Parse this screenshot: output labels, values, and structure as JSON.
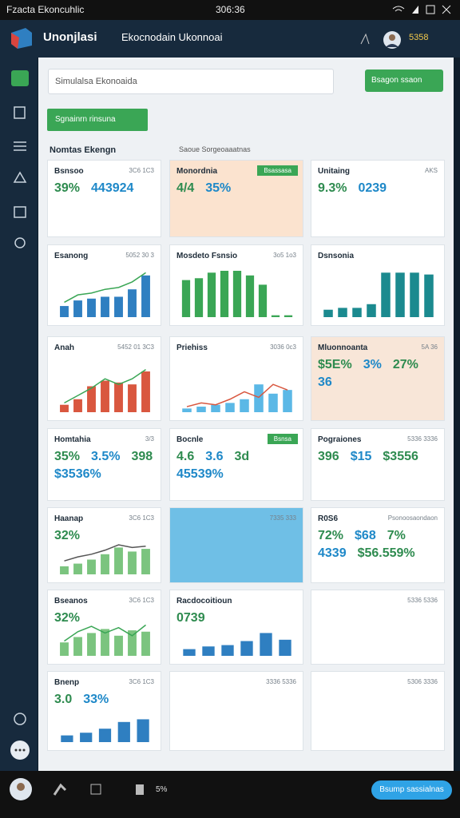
{
  "status_bar": {
    "title": "Fzacta Ekoncuhlic",
    "time": "306:36"
  },
  "header": {
    "app_name": "Unonjlasi",
    "page_title": "Ekocnodain Ukonnoai",
    "badge": "5358"
  },
  "search": {
    "placeholder": "Simulalsa Ekonoaida",
    "button": "Bsagon ssaon"
  },
  "action_button": "Sgnainrn rinsuna",
  "section": {
    "title": "Nomtas Ekengn",
    "filter": "Saoue Sorgeoaaatnas"
  },
  "cards": [
    {
      "title": "Bsnsoo",
      "meta": "3C6 1C3",
      "stats": [
        "39%",
        "443924"
      ]
    },
    {
      "title": "Monordnia",
      "badge": "Bsassasa",
      "background": "#fbe3cf",
      "stats": [
        "4/4",
        "35%"
      ]
    },
    {
      "title": "Unitaing",
      "meta": "AKS",
      "stats": [
        "9.3%",
        "0239"
      ]
    },
    {
      "title": "Esanong",
      "meta": "5052 30 3",
      "color": "#2f7fc1",
      "line_color": "#3aa655",
      "ylim": [
        0,
        50
      ],
      "bars": [
        12,
        18,
        20,
        22,
        22,
        30,
        45
      ],
      "line": [
        16,
        24,
        26,
        30,
        32,
        38,
        48
      ]
    },
    {
      "title": "Mosdeto Fsnsio",
      "meta": "3o5 1o3",
      "color": "#3aa655",
      "ylim": [
        0,
        50
      ],
      "bars": [
        40,
        42,
        48,
        50,
        52,
        45,
        35,
        2,
        2
      ]
    },
    {
      "title": "Dsnsonia",
      "color": "#1b8a8f",
      "ylim": [
        0,
        50
      ],
      "bars": [
        8,
        10,
        10,
        14,
        48,
        48,
        48,
        46
      ]
    },
    {
      "title": "Anah",
      "meta": "5452 01 3C3",
      "color": "#d9573f",
      "line_color": "#3aa655",
      "ylim": [
        0,
        50
      ],
      "bars": [
        8,
        14,
        28,
        34,
        32,
        30,
        44
      ],
      "line": [
        10,
        18,
        26,
        36,
        30,
        36,
        46
      ]
    },
    {
      "title": "Priehiss",
      "meta": "3036 0c3",
      "color": "#5bb8e6",
      "line_color": "#d9573f",
      "ylim": [
        0,
        50
      ],
      "bars": [
        4,
        6,
        8,
        10,
        14,
        30,
        20,
        24
      ],
      "line": [
        6,
        10,
        8,
        14,
        22,
        16,
        30,
        24
      ]
    },
    {
      "title": "Mluonnoanta",
      "meta": "5A 36",
      "background": "#f8e6d8",
      "stats": [
        "$5E%",
        "3%",
        "27%",
        "36"
      ]
    },
    {
      "title": "Homtahia",
      "meta": "3/3",
      "stats": [
        "35%",
        "3.5%",
        "398",
        "$3536%"
      ]
    },
    {
      "title": "Bocnle",
      "badge": "Bsnsa",
      "stats": [
        "4.6",
        "3.6",
        "3d",
        "45539%"
      ]
    },
    {
      "title": "Pograiones",
      "meta": "5336 3336",
      "stats": [
        "396",
        "$15",
        "$3556"
      ]
    },
    {
      "title": "Haanap",
      "meta": "3C6 1C3",
      "color": "#7bc47f",
      "line_color": "#555555",
      "ylim": [
        0,
        50
      ],
      "bars": [
        12,
        16,
        22,
        30,
        40,
        34,
        38
      ],
      "line": [
        20,
        26,
        30,
        36,
        44,
        40,
        42
      ],
      "stats": [
        "32%"
      ]
    },
    {
      "meta": "7335 333",
      "background": "#6fbfe6"
    },
    {
      "title": "R0S6",
      "meta": "Psonoosaondaon",
      "background": "#ffffff",
      "stats": [
        "72%",
        "$68",
        "7%",
        "4339",
        "$56.559%"
      ]
    },
    {
      "title": "Bseanos",
      "meta": "3C6 1C3",
      "color": "#7bc47f",
      "line_color": "#3aa655",
      "ylim": [
        0,
        50
      ],
      "bars": [
        20,
        28,
        34,
        40,
        30,
        38,
        36
      ],
      "line": [
        22,
        36,
        44,
        34,
        42,
        30,
        46
      ],
      "stats": [
        "32%"
      ]
    },
    {
      "title": "Racdocoitioun",
      "color": "#2f7fc1",
      "ylim": [
        0,
        50
      ],
      "bars": [
        10,
        14,
        16,
        22,
        34,
        24
      ],
      "stats": [
        "0739"
      ]
    },
    {
      "meta": "5336 5336"
    },
    {
      "title": "Bnenp",
      "meta": "3C6 1C3",
      "color": "#2f7fc1",
      "ylim": [
        0,
        50
      ],
      "bars": [
        10,
        14,
        20,
        30,
        34
      ],
      "stats": [
        "3.0",
        "33%"
      ]
    },
    {
      "meta": "3336 5336"
    },
    {
      "meta": "5306 3336"
    }
  ],
  "bottom_bar": {
    "status": "5%",
    "button": "Bsump sassialnas"
  }
}
